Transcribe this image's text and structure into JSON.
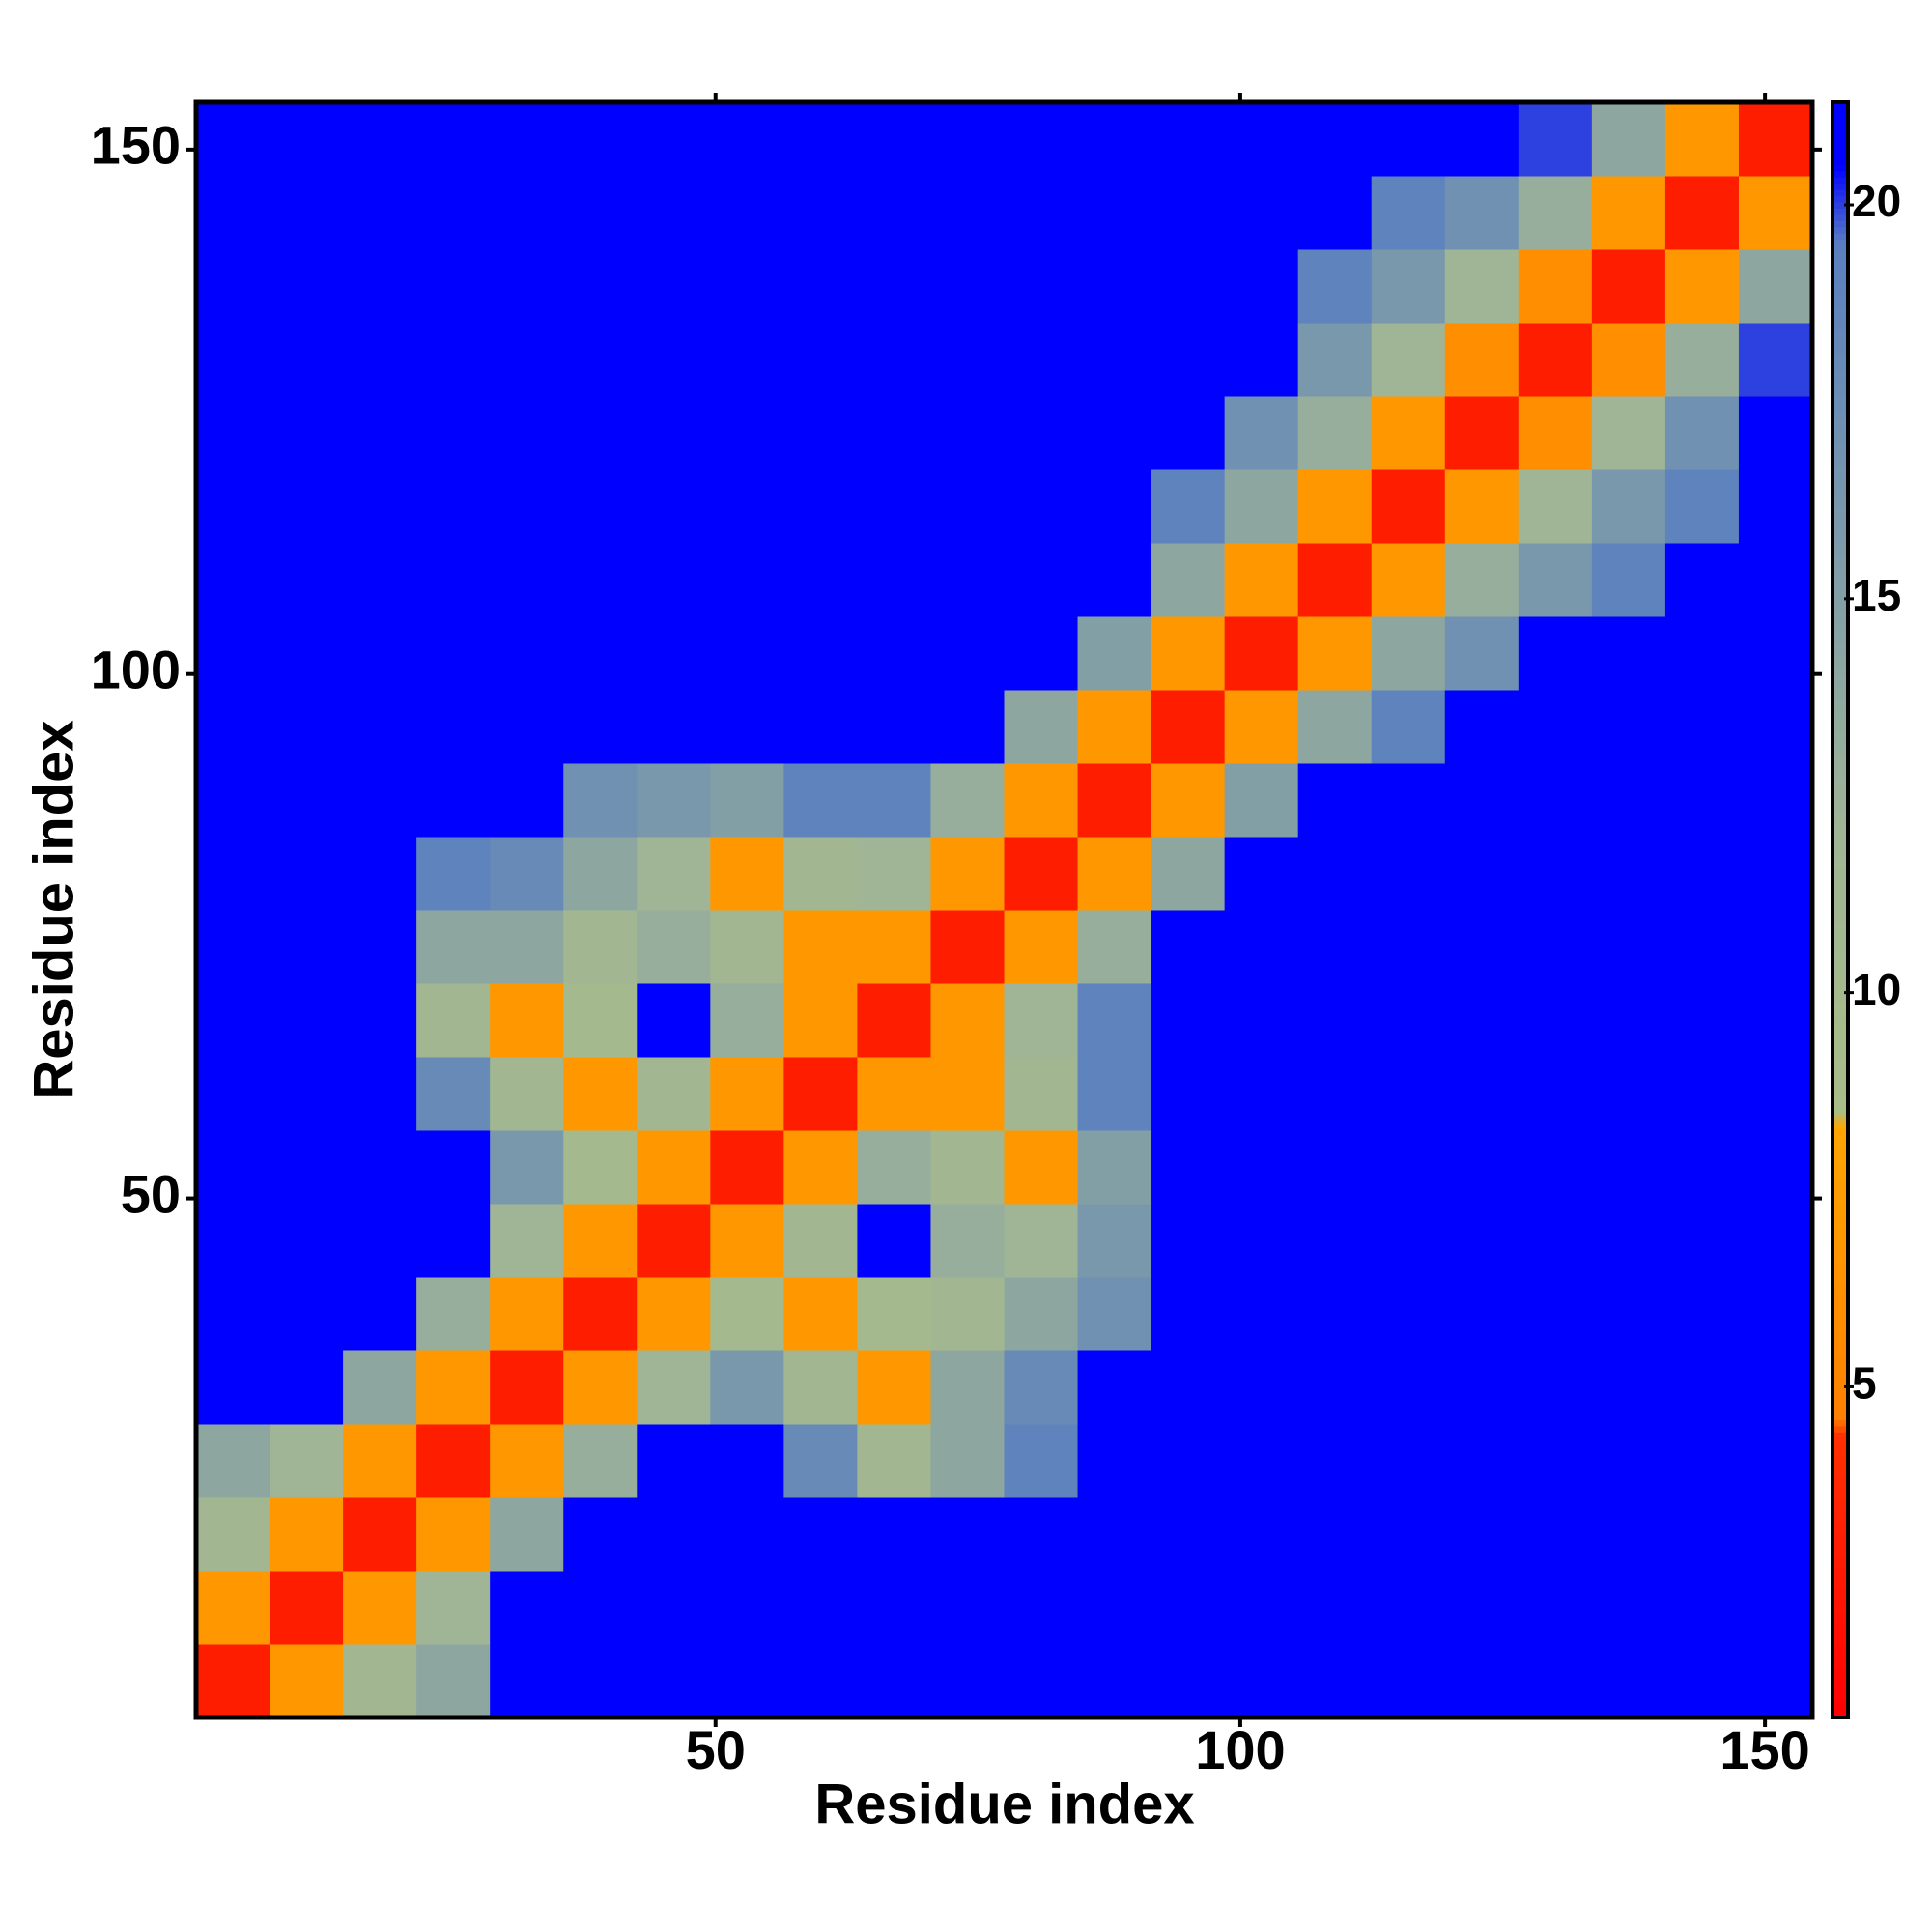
{
  "chart_data": {
    "type": "heatmap",
    "xlabel": "Residue index",
    "ylabel": "Residue index",
    "xbins": [
      0.5,
      7.5,
      14.5,
      21.5,
      28.5,
      35.5,
      42.5,
      49.5,
      56.5,
      63.5,
      70.5,
      77.5,
      84.5,
      91.5,
      98.5,
      105.5,
      112.5,
      119.5,
      126.5,
      133.5,
      140.5,
      147.5,
      154.5
    ],
    "ybins": [
      0.5,
      7.5,
      14.5,
      21.5,
      28.5,
      35.5,
      42.5,
      49.5,
      56.5,
      63.5,
      70.5,
      77.5,
      84.5,
      91.5,
      98.5,
      105.5,
      112.5,
      119.5,
      126.5,
      133.5,
      140.5,
      147.5,
      154.5
    ],
    "z": [
      [
        3,
        7,
        11,
        14,
        21,
        21,
        21,
        21,
        21,
        21,
        21,
        21,
        21,
        21,
        21,
        21,
        21,
        21,
        21,
        21,
        21,
        21
      ],
      [
        7,
        3,
        7,
        12,
        21,
        21,
        21,
        21,
        21,
        21,
        21,
        21,
        21,
        21,
        21,
        21,
        21,
        21,
        21,
        21,
        21,
        21
      ],
      [
        11,
        7,
        3,
        7,
        14,
        21,
        21,
        21,
        21,
        21,
        21,
        21,
        21,
        21,
        21,
        21,
        21,
        21,
        21,
        21,
        21,
        21
      ],
      [
        14,
        12,
        7,
        3,
        7,
        13,
        21,
        21,
        18,
        11,
        14,
        19,
        21,
        21,
        21,
        21,
        21,
        21,
        21,
        21,
        21,
        21
      ],
      [
        21,
        21,
        14,
        7,
        3,
        7,
        12,
        16,
        11,
        7,
        14,
        18,
        21,
        21,
        21,
        21,
        21,
        21,
        21,
        21,
        21,
        21
      ],
      [
        21,
        21,
        21,
        13,
        7,
        3,
        7,
        10,
        7,
        10,
        11,
        14,
        17,
        21,
        21,
        21,
        21,
        21,
        21,
        21,
        21,
        21
      ],
      [
        21,
        21,
        21,
        21,
        12,
        7,
        3,
        7,
        11,
        21,
        13,
        12,
        16,
        21,
        21,
        21,
        21,
        21,
        21,
        21,
        21,
        21
      ],
      [
        21,
        21,
        21,
        21,
        16,
        10,
        7,
        3,
        7,
        13,
        11,
        7,
        15,
        21,
        21,
        21,
        21,
        21,
        21,
        21,
        21,
        21
      ],
      [
        21,
        21,
        21,
        18,
        11,
        7,
        11,
        7,
        3,
        7,
        7,
        11,
        19,
        21,
        21,
        21,
        21,
        21,
        21,
        21,
        21,
        21
      ],
      [
        21,
        21,
        21,
        11,
        7,
        10,
        21,
        13,
        7,
        3,
        7,
        12,
        19,
        21,
        21,
        21,
        21,
        21,
        21,
        21,
        21,
        21
      ],
      [
        21,
        21,
        21,
        14,
        14,
        11,
        13,
        11,
        7,
        7,
        3,
        7,
        13,
        21,
        21,
        21,
        21,
        21,
        21,
        21,
        21,
        21
      ],
      [
        21,
        21,
        21,
        19,
        18,
        14,
        12,
        7,
        11,
        12,
        7,
        3,
        7,
        14,
        21,
        21,
        21,
        21,
        21,
        21,
        21,
        21
      ],
      [
        21,
        21,
        21,
        21,
        21,
        17,
        16,
        15,
        19,
        19,
        13,
        7,
        3,
        7,
        15,
        21,
        21,
        21,
        21,
        21,
        21,
        21
      ],
      [
        21,
        21,
        21,
        21,
        21,
        21,
        21,
        21,
        21,
        21,
        21,
        14,
        7,
        3,
        7,
        14,
        19,
        21,
        21,
        21,
        21,
        21
      ],
      [
        21,
        21,
        21,
        21,
        21,
        21,
        21,
        21,
        21,
        21,
        21,
        21,
        15,
        7,
        3,
        7,
        14,
        17,
        21,
        21,
        21,
        21
      ],
      [
        21,
        21,
        21,
        21,
        21,
        21,
        21,
        21,
        21,
        21,
        21,
        21,
        21,
        14,
        7,
        3,
        7,
        13,
        16,
        19,
        21,
        21
      ],
      [
        21,
        21,
        21,
        21,
        21,
        21,
        21,
        21,
        21,
        21,
        21,
        21,
        21,
        19,
        14,
        7,
        3,
        7,
        12,
        16,
        19,
        21
      ],
      [
        21,
        21,
        21,
        21,
        21,
        21,
        21,
        21,
        21,
        21,
        21,
        21,
        21,
        21,
        17,
        13,
        7,
        3,
        6,
        12,
        17,
        21
      ],
      [
        21,
        21,
        21,
        21,
        21,
        21,
        21,
        21,
        21,
        21,
        21,
        21,
        21,
        21,
        21,
        16,
        12,
        6,
        3,
        6,
        13,
        20
      ],
      [
        21,
        21,
        21,
        21,
        21,
        21,
        21,
        21,
        21,
        21,
        21,
        21,
        21,
        21,
        21,
        19,
        16,
        12,
        6,
        3,
        7,
        14
      ],
      [
        21,
        21,
        21,
        21,
        21,
        21,
        21,
        21,
        21,
        21,
        21,
        21,
        21,
        21,
        21,
        21,
        19,
        17,
        13,
        7,
        3,
        7
      ],
      [
        21,
        21,
        21,
        21,
        21,
        21,
        21,
        21,
        21,
        21,
        21,
        21,
        21,
        21,
        21,
        21,
        21,
        21,
        20,
        14,
        7,
        3
      ]
    ],
    "xlim": [
      0.5,
      154.5
    ],
    "ylim": [
      0.5,
      154.5
    ],
    "xticks": [
      50,
      100,
      150
    ],
    "yticks": [
      50,
      100,
      150
    ],
    "clim": [
      0.8,
      21.3
    ],
    "cticks": [
      5,
      10,
      15,
      20
    ],
    "colorscale": [
      [
        0.8,
        "#ff0000"
      ],
      [
        4.4,
        "#ff3000"
      ],
      [
        4.6,
        "#ff8000"
      ],
      [
        8.3,
        "#ffa500"
      ],
      [
        8.5,
        "#a8bd88"
      ],
      [
        12,
        "#9fb595"
      ],
      [
        19.5,
        "#5a7fc0"
      ],
      [
        20.5,
        "#0000ff"
      ],
      [
        21.3,
        "#0000ff"
      ]
    ]
  }
}
